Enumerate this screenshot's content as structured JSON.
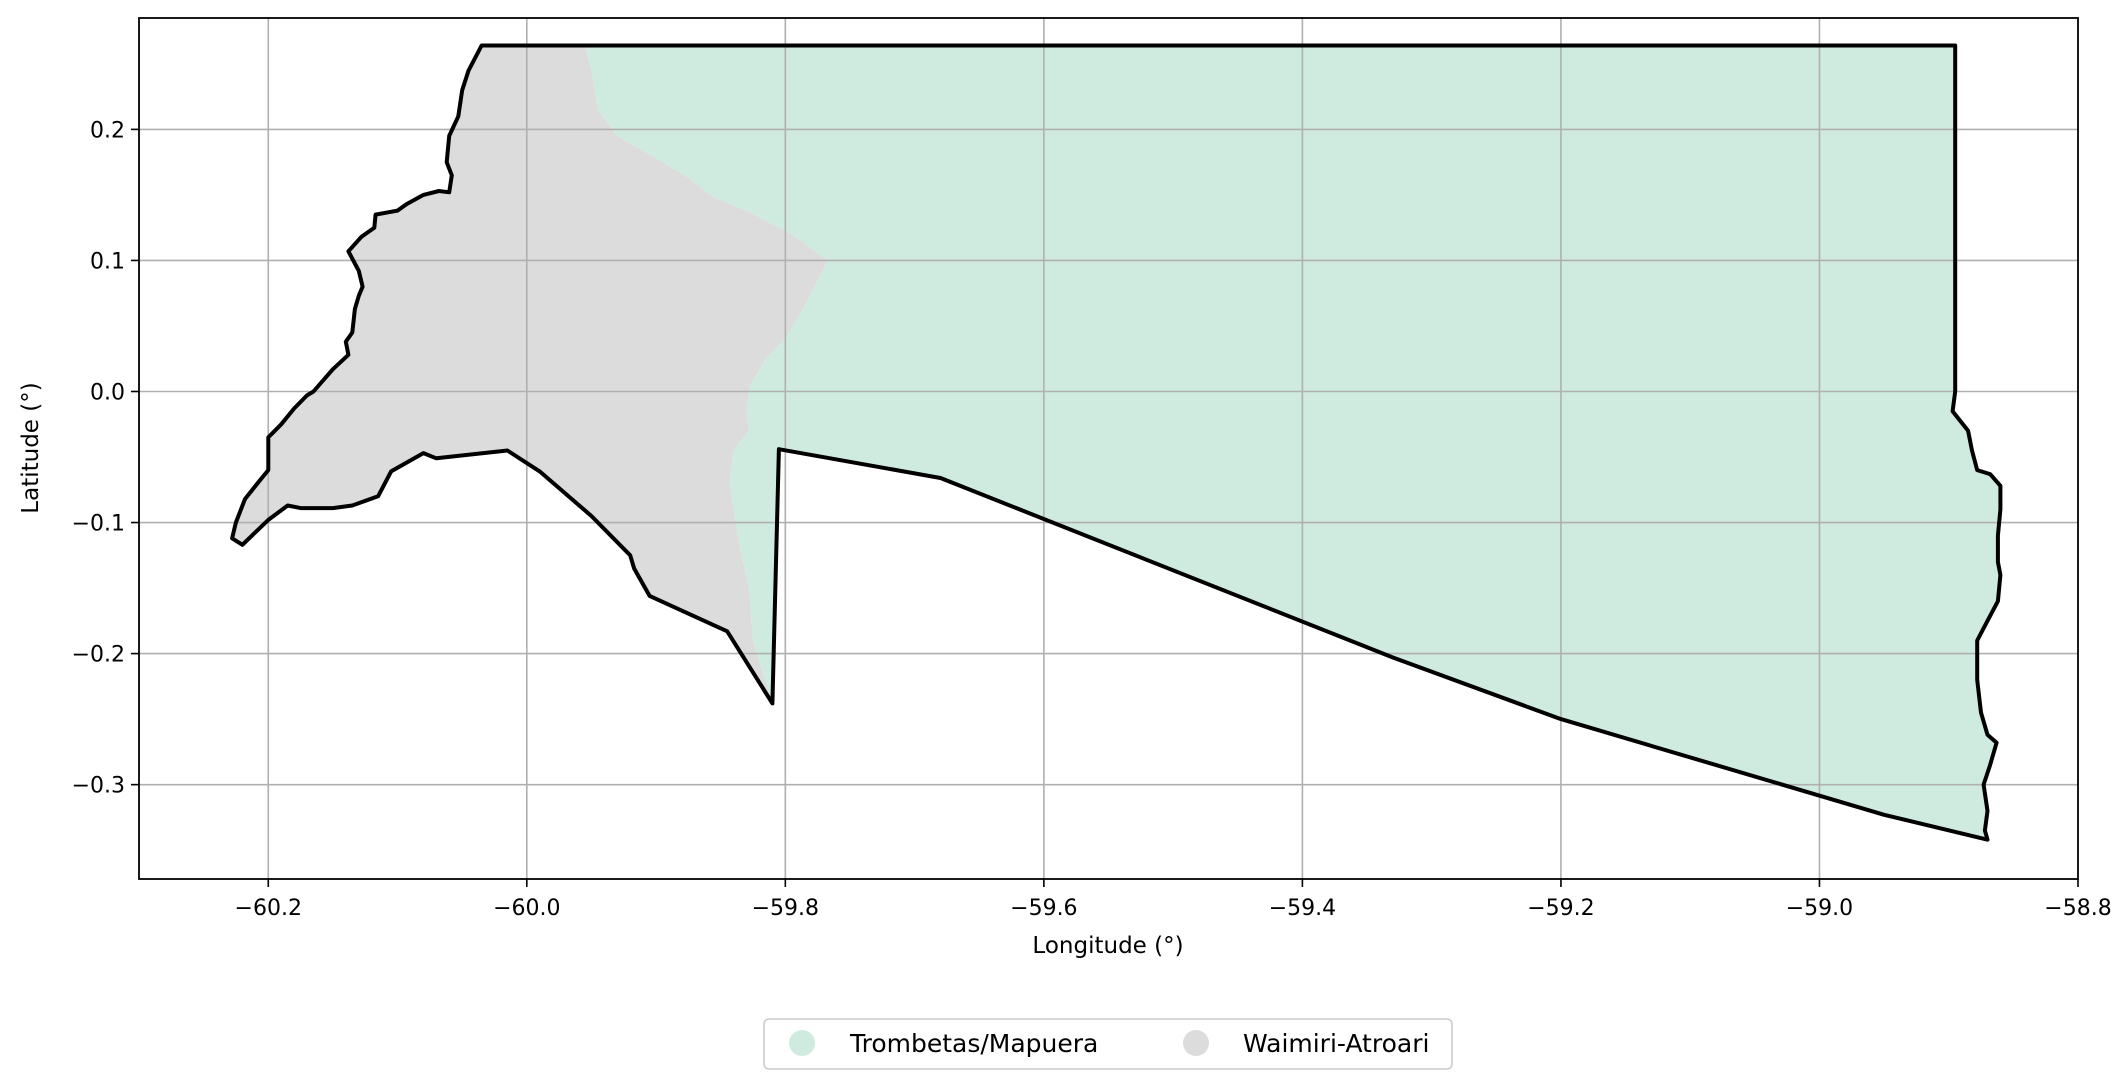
{
  "chart_data": {
    "type": "map",
    "xlabel": "Longitude (°)",
    "ylabel": "Latitude (°)",
    "xlim": [
      -60.3,
      -58.8
    ],
    "ylim": [
      -0.372,
      0.285
    ],
    "x_ticks": [
      -60.2,
      -60.0,
      -59.8,
      -59.6,
      -59.4,
      -59.2,
      -59.0,
      -58.8
    ],
    "x_tick_labels": [
      "−60.2",
      "−60.0",
      "−59.8",
      "−59.6",
      "−59.4",
      "−59.2",
      "−59.0",
      "−58.8"
    ],
    "y_ticks": [
      0.2,
      0.1,
      0.0,
      -0.1,
      -0.2,
      -0.3
    ],
    "y_tick_labels": [
      "0.2",
      "0.1",
      "0.0",
      "−0.1",
      "−0.2",
      "−0.3"
    ],
    "grid": true,
    "legend_position": "bottom-center",
    "legend": [
      {
        "label": "Trombetas/Mapuera",
        "color": "#cfebdf"
      },
      {
        "label": "Waimiri-Atroari",
        "color": "#dcdcdc"
      }
    ],
    "regions": [
      {
        "name": "Waimiri-Atroari",
        "color": "#dcdcdc",
        "coords": [
          [
            -60.035,
            0.264
          ],
          [
            -59.955,
            0.264
          ],
          [
            -59.95,
            0.245
          ],
          [
            -59.945,
            0.215
          ],
          [
            -59.93,
            0.195
          ],
          [
            -59.9,
            0.178
          ],
          [
            -59.875,
            0.163
          ],
          [
            -59.855,
            0.148
          ],
          [
            -59.83,
            0.138
          ],
          [
            -59.795,
            0.12
          ],
          [
            -59.767,
            0.1
          ],
          [
            -59.785,
            0.065
          ],
          [
            -59.8,
            0.04
          ],
          [
            -59.815,
            0.025
          ],
          [
            -59.827,
            0.005
          ],
          [
            -59.83,
            -0.015
          ],
          [
            -59.828,
            -0.03
          ],
          [
            -59.84,
            -0.045
          ],
          [
            -59.843,
            -0.07
          ],
          [
            -59.84,
            -0.09
          ],
          [
            -59.835,
            -0.12
          ],
          [
            -59.828,
            -0.15
          ],
          [
            -59.825,
            -0.19
          ],
          [
            -59.81,
            -0.238
          ],
          [
            -59.845,
            -0.183
          ],
          [
            -59.905,
            -0.156
          ],
          [
            -59.917,
            -0.135
          ],
          [
            -59.92,
            -0.125
          ],
          [
            -59.95,
            -0.095
          ],
          [
            -59.99,
            -0.061
          ],
          [
            -60.015,
            -0.045
          ],
          [
            -60.07,
            -0.051
          ],
          [
            -60.08,
            -0.047
          ],
          [
            -60.105,
            -0.061
          ],
          [
            -60.115,
            -0.08
          ],
          [
            -60.135,
            -0.087
          ],
          [
            -60.15,
            -0.089
          ],
          [
            -60.175,
            -0.089
          ],
          [
            -60.185,
            -0.087
          ],
          [
            -60.2,
            -0.098
          ],
          [
            -60.22,
            -0.117
          ],
          [
            -60.228,
            -0.112
          ],
          [
            -60.225,
            -0.1
          ],
          [
            -60.218,
            -0.082
          ],
          [
            -60.205,
            -0.066
          ],
          [
            -60.2,
            -0.06
          ],
          [
            -60.2,
            -0.035
          ],
          [
            -60.19,
            -0.025
          ],
          [
            -60.18,
            -0.013
          ],
          [
            -60.17,
            -0.003
          ],
          [
            -60.165,
            0.0
          ],
          [
            -60.158,
            0.008
          ],
          [
            -60.15,
            0.017
          ],
          [
            -60.138,
            0.028
          ],
          [
            -60.14,
            0.038
          ],
          [
            -60.135,
            0.045
          ],
          [
            -60.133,
            0.063
          ],
          [
            -60.13,
            0.073
          ],
          [
            -60.127,
            0.08
          ],
          [
            -60.13,
            0.092
          ],
          [
            -60.138,
            0.107
          ],
          [
            -60.128,
            0.118
          ],
          [
            -60.118,
            0.125
          ],
          [
            -60.117,
            0.135
          ],
          [
            -60.1,
            0.138
          ],
          [
            -60.093,
            0.143
          ],
          [
            -60.08,
            0.15
          ],
          [
            -60.068,
            0.153
          ],
          [
            -60.06,
            0.152
          ],
          [
            -60.058,
            0.165
          ],
          [
            -60.062,
            0.175
          ],
          [
            -60.06,
            0.195
          ],
          [
            -60.053,
            0.21
          ],
          [
            -60.05,
            0.23
          ],
          [
            -60.045,
            0.245
          ],
          [
            -60.035,
            0.264
          ]
        ]
      },
      {
        "name": "Trombetas/Mapuera",
        "color": "#cfebdf",
        "coords": [
          [
            -59.955,
            0.264
          ],
          [
            -58.895,
            0.264
          ],
          [
            -58.895,
            0.0
          ],
          [
            -58.897,
            -0.015
          ],
          [
            -58.885,
            -0.03
          ],
          [
            -58.882,
            -0.045
          ],
          [
            -58.878,
            -0.06
          ],
          [
            -58.868,
            -0.063
          ],
          [
            -58.86,
            -0.072
          ],
          [
            -58.86,
            -0.09
          ],
          [
            -58.862,
            -0.11
          ],
          [
            -58.862,
            -0.13
          ],
          [
            -58.86,
            -0.14
          ],
          [
            -58.862,
            -0.16
          ],
          [
            -58.87,
            -0.175
          ],
          [
            -58.878,
            -0.19
          ],
          [
            -58.878,
            -0.22
          ],
          [
            -58.875,
            -0.245
          ],
          [
            -58.87,
            -0.262
          ],
          [
            -58.863,
            -0.268
          ],
          [
            -58.868,
            -0.285
          ],
          [
            -58.873,
            -0.3
          ],
          [
            -58.87,
            -0.32
          ],
          [
            -58.872,
            -0.335
          ],
          [
            -58.87,
            -0.342
          ],
          [
            -58.95,
            -0.323
          ],
          [
            -59.2,
            -0.25
          ],
          [
            -59.33,
            -0.203
          ],
          [
            -59.68,
            -0.066
          ],
          [
            -59.805,
            -0.044
          ],
          [
            -59.81,
            -0.238
          ],
          [
            -59.825,
            -0.19
          ],
          [
            -59.828,
            -0.15
          ],
          [
            -59.835,
            -0.12
          ],
          [
            -59.84,
            -0.09
          ],
          [
            -59.843,
            -0.07
          ],
          [
            -59.84,
            -0.045
          ],
          [
            -59.828,
            -0.03
          ],
          [
            -59.83,
            -0.015
          ],
          [
            -59.827,
            0.005
          ],
          [
            -59.815,
            0.025
          ],
          [
            -59.8,
            0.04
          ],
          [
            -59.785,
            0.065
          ],
          [
            -59.767,
            0.1
          ],
          [
            -59.795,
            0.12
          ],
          [
            -59.83,
            0.138
          ],
          [
            -59.855,
            0.148
          ],
          [
            -59.875,
            0.163
          ],
          [
            -59.9,
            0.178
          ],
          [
            -59.93,
            0.195
          ],
          [
            -59.945,
            0.215
          ],
          [
            -59.95,
            0.245
          ],
          [
            -59.955,
            0.264
          ]
        ]
      }
    ],
    "outline": [
      [
        -60.035,
        0.264
      ],
      [
        -58.895,
        0.264
      ],
      [
        -58.895,
        0.0
      ],
      [
        -58.897,
        -0.015
      ],
      [
        -58.885,
        -0.03
      ],
      [
        -58.882,
        -0.045
      ],
      [
        -58.878,
        -0.06
      ],
      [
        -58.868,
        -0.063
      ],
      [
        -58.86,
        -0.072
      ],
      [
        -58.86,
        -0.09
      ],
      [
        -58.862,
        -0.11
      ],
      [
        -58.862,
        -0.13
      ],
      [
        -58.86,
        -0.14
      ],
      [
        -58.862,
        -0.16
      ],
      [
        -58.87,
        -0.175
      ],
      [
        -58.878,
        -0.19
      ],
      [
        -58.878,
        -0.22
      ],
      [
        -58.875,
        -0.245
      ],
      [
        -58.87,
        -0.262
      ],
      [
        -58.863,
        -0.268
      ],
      [
        -58.868,
        -0.285
      ],
      [
        -58.873,
        -0.3
      ],
      [
        -58.87,
        -0.32
      ],
      [
        -58.872,
        -0.335
      ],
      [
        -58.87,
        -0.342
      ],
      [
        -58.95,
        -0.323
      ],
      [
        -59.2,
        -0.25
      ],
      [
        -59.33,
        -0.203
      ],
      [
        -59.68,
        -0.066
      ],
      [
        -59.805,
        -0.044
      ],
      [
        -59.81,
        -0.238
      ],
      [
        -59.845,
        -0.183
      ],
      [
        -59.905,
        -0.156
      ],
      [
        -59.917,
        -0.135
      ],
      [
        -59.92,
        -0.125
      ],
      [
        -59.95,
        -0.095
      ],
      [
        -59.99,
        -0.061
      ],
      [
        -60.015,
        -0.045
      ],
      [
        -60.07,
        -0.051
      ],
      [
        -60.08,
        -0.047
      ],
      [
        -60.105,
        -0.061
      ],
      [
        -60.115,
        -0.08
      ],
      [
        -60.135,
        -0.087
      ],
      [
        -60.15,
        -0.089
      ],
      [
        -60.175,
        -0.089
      ],
      [
        -60.185,
        -0.087
      ],
      [
        -60.2,
        -0.098
      ],
      [
        -60.22,
        -0.117
      ],
      [
        -60.228,
        -0.112
      ],
      [
        -60.225,
        -0.1
      ],
      [
        -60.218,
        -0.082
      ],
      [
        -60.205,
        -0.066
      ],
      [
        -60.2,
        -0.06
      ],
      [
        -60.2,
        -0.035
      ],
      [
        -60.19,
        -0.025
      ],
      [
        -60.18,
        -0.013
      ],
      [
        -60.17,
        -0.003
      ],
      [
        -60.165,
        0.0
      ],
      [
        -60.158,
        0.008
      ],
      [
        -60.15,
        0.017
      ],
      [
        -60.138,
        0.028
      ],
      [
        -60.14,
        0.038
      ],
      [
        -60.135,
        0.045
      ],
      [
        -60.133,
        0.063
      ],
      [
        -60.13,
        0.073
      ],
      [
        -60.127,
        0.08
      ],
      [
        -60.13,
        0.092
      ],
      [
        -60.138,
        0.107
      ],
      [
        -60.128,
        0.118
      ],
      [
        -60.118,
        0.125
      ],
      [
        -60.117,
        0.135
      ],
      [
        -60.1,
        0.138
      ],
      [
        -60.093,
        0.143
      ],
      [
        -60.08,
        0.15
      ],
      [
        -60.068,
        0.153
      ],
      [
        -60.06,
        0.152
      ],
      [
        -60.058,
        0.165
      ],
      [
        -60.062,
        0.175
      ],
      [
        -60.06,
        0.195
      ],
      [
        -60.053,
        0.21
      ],
      [
        -60.05,
        0.23
      ],
      [
        -60.045,
        0.245
      ],
      [
        -60.035,
        0.264
      ]
    ]
  }
}
